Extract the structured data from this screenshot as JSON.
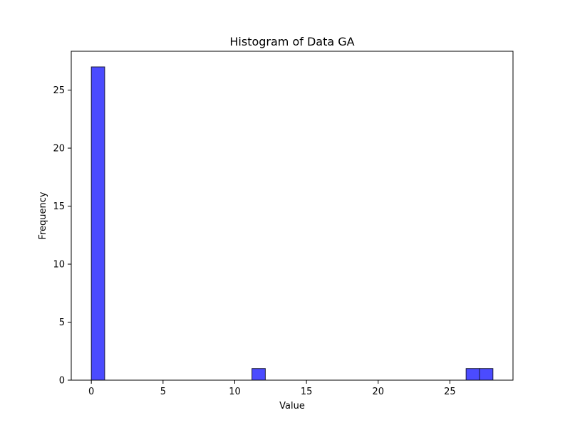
{
  "chart_data": {
    "type": "bar",
    "title": "Histogram of Data GA",
    "xlabel": "Value",
    "ylabel": "Frequency",
    "xlim": [
      -1.4,
      29.4
    ],
    "ylim": [
      0,
      28.35
    ],
    "xticks": [
      0,
      5,
      10,
      15,
      20,
      25
    ],
    "yticks": [
      0,
      5,
      10,
      15,
      20,
      25
    ],
    "bins": [
      {
        "x0": 0.0,
        "x1": 0.93,
        "count": 27
      },
      {
        "x0": 11.2,
        "x1": 12.13,
        "count": 1
      },
      {
        "x0": 26.13,
        "x1": 27.07,
        "count": 1
      },
      {
        "x0": 27.07,
        "x1": 28.0,
        "count": 1
      }
    ],
    "bar_color": "#4b4bff",
    "bar_edge_color": "#1a1a3a",
    "grid": false,
    "legend": "none"
  }
}
